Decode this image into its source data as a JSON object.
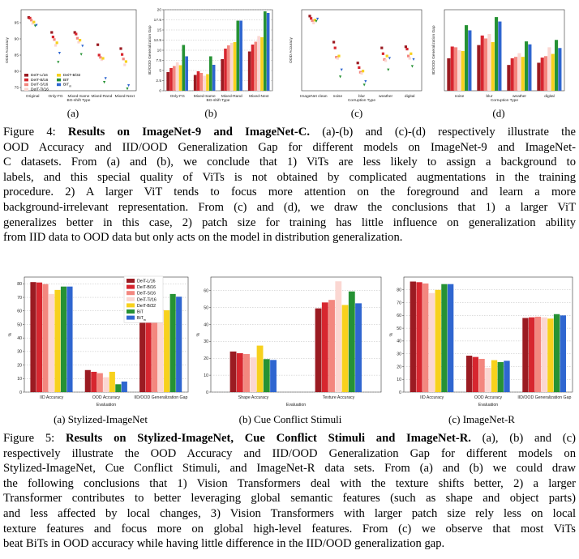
{
  "figure4": {
    "charts": [
      {
        "type": "scatter",
        "label": "(a)",
        "ylabel": "OOD Accuracy",
        "xlabel": "BG-shift Type",
        "categories": [
          "Original",
          "Only-FG",
          "Mixed-Same",
          "Mixed-Rand",
          "Mixed-Next"
        ],
        "yticks": [
          75,
          80,
          85,
          90,
          95
        ],
        "ylim": [
          74,
          99
        ],
        "series": [
          {
            "name": "DeiT-L/16",
            "values": [
              96.6,
              92.0,
              92.0,
              88.2,
              87.0
            ]
          },
          {
            "name": "DeiT-B/16",
            "values": [
              96.4,
              90.6,
              91.5,
              85.0,
              85.2
            ]
          },
          {
            "name": "DeiT-S/16",
            "values": [
              95.8,
              89.8,
              90.2,
              84.3,
              83.8
            ]
          },
          {
            "name": "DeiT-Ti/16",
            "values": [
              94.8,
              88.0,
              89.0,
              83.6,
              82.0
            ]
          },
          {
            "name": "DeiT-B/32",
            "values": [
              95.2,
              88.8,
              89.6,
              84.0,
              83.0
            ]
          },
          {
            "name": "BiT",
            "values": [
              94.0,
              82.8,
              85.2,
              76.6,
              74.6
            ]
          },
          {
            "name": "BiT_m",
            "values": [
              94.2,
              85.6,
              87.8,
              77.8,
              75.6
            ]
          }
        ],
        "legend": [
          "DeiT-L/16",
          "DeiT-B/16",
          "DeiT-S/16",
          "DeiT-Ti/16",
          "DeiT-B/32",
          "BiT",
          "BiT_m"
        ]
      },
      {
        "type": "bar",
        "label": "(b)",
        "ylabel": "IID/OOD Generalization Gap",
        "xlabel": "BG-shift Type",
        "categories": [
          "Only-FG",
          "Mixed-Same",
          "Mixed-Rand",
          "Mixed-Next"
        ],
        "yticks": [
          0.0,
          2.5,
          5.0,
          7.5,
          10.0,
          12.5,
          15.0,
          17.5,
          20.0
        ],
        "ylim": [
          0,
          20
        ],
        "series": [
          {
            "name": "DeiT-L/16",
            "values": [
              4.6,
              3.9,
              7.8,
              9.7
            ]
          },
          {
            "name": "DeiT-B/16",
            "values": [
              5.6,
              4.8,
              10.4,
              11.4
            ]
          },
          {
            "name": "DeiT-S/16",
            "values": [
              6.1,
              4.4,
              11.2,
              12.1
            ]
          },
          {
            "name": "DeiT-Ti/16",
            "values": [
              7.0,
              3.7,
              11.8,
              13.5
            ]
          },
          {
            "name": "DeiT-B/32",
            "values": [
              6.3,
              4.1,
              12.0,
              13.2
            ]
          },
          {
            "name": "BiT",
            "values": [
              11.3,
              8.5,
              17.3,
              19.6
            ]
          },
          {
            "name": "BiT_m",
            "values": [
              8.5,
              6.4,
              17.3,
              19.2
            ]
          }
        ]
      },
      {
        "type": "scatter",
        "label": "(c)",
        "ylabel": "OOD Accuracy",
        "xlabel": "Corruption Type",
        "categories": [
          "ImageNet clean",
          "noise",
          "blur",
          "weather",
          "digital"
        ],
        "ylim": [
          20,
          90
        ],
        "series": [
          {
            "name": "DeiT-L/16",
            "values": [
              84.5,
              62.0,
              44.0,
              57.0,
              58.0
            ]
          },
          {
            "name": "DeiT-B/16",
            "values": [
              82.5,
              57.0,
              40.0,
              52.0,
              56.0
            ]
          },
          {
            "name": "DeiT-S/16",
            "values": [
              80.5,
              49.0,
              36.0,
              47.0,
              50.0
            ]
          },
          {
            "name": "DeiT-Ti/16",
            "values": [
              78.5,
              48.0,
              35.0,
              46.0,
              48.0
            ]
          },
          {
            "name": "DeiT-B/32",
            "values": [
              81.0,
              50.0,
              37.0,
              50.0,
              52.0
            ]
          },
          {
            "name": "BiT",
            "values": [
              80.0,
              32.0,
              25.0,
              38.0,
              41.0
            ]
          },
          {
            "name": "BiT_m",
            "values": [
              82.0,
              38.0,
              28.0,
              48.0,
              47.0
            ]
          }
        ]
      },
      {
        "type": "bar",
        "label": "(d)",
        "ylabel": "IID/OOD Generalization Gap",
        "xlabel": "Corruption Type",
        "categories": [
          "noise",
          "blur",
          "weather",
          "digital"
        ],
        "ylim": [
          0,
          55
        ],
        "series": [
          {
            "name": "DeiT-L/16",
            "values": [
              22.0,
              31.0,
              17.5,
              19.0
            ]
          },
          {
            "name": "DeiT-B/16",
            "values": [
              30.0,
              37.5,
              22.0,
              22.5
            ]
          },
          {
            "name": "DeiT-S/16",
            "values": [
              29.5,
              35.5,
              23.0,
              23.5
            ]
          },
          {
            "name": "DeiT-Ti/16",
            "values": [
              27.5,
              38.5,
              25.5,
              29.5
            ]
          },
          {
            "name": "DeiT-B/32",
            "values": [
              27.0,
              33.0,
              23.0,
              25.0
            ]
          },
          {
            "name": "BiT",
            "values": [
              44.5,
              50.0,
              33.5,
              34.5
            ]
          },
          {
            "name": "BiT_m",
            "values": [
              41.0,
              47.0,
              31.5,
              29.0
            ]
          }
        ]
      }
    ],
    "caption": {
      "fig_label": "Figure 4:",
      "title": "Results on ImageNet-9 and ImageNet-C.",
      "body": [
        "(a)-(b) and (c)-(d) respectively illustrate the",
        "OOD Accuracy and IID/OOD Generalization Gap for different models on ImageNet-9 and ImageNet-",
        "C datasets.  From (a) and (b), we conclude that 1) ViTs are less likely to assign a background to",
        "labels, and this special quality of ViTs is not obtained by complicated augmentations in the training",
        "procedure.  2) A larger ViT tends to focus more attention on the foreground and learn a more",
        "background-irrelevant representation.  From (c) and (d), we draw the conclusions that 1) a larger ViT",
        "generalizes better in this case, 2) patch size for training has little influence on generalization ability",
        "from IID data to OOD data but only acts on the model in distribution generalization."
      ]
    }
  },
  "figure5": {
    "charts": [
      {
        "type": "bar",
        "sublabel": "(a) Stylized-ImageNet",
        "ylabel": "%",
        "xlabel": "Evaluation",
        "categories": [
          "IID Accuracy",
          "OOD Accuracy",
          "IID/OOD Generalization Gap"
        ],
        "yticks": [
          0,
          10,
          20,
          30,
          40,
          50,
          60,
          70,
          80
        ],
        "ylim": [
          0,
          85
        ],
        "series": [
          {
            "name": "DeiT-L/16",
            "values": [
              81.3,
              16.3,
              65.0
            ]
          },
          {
            "name": "DeiT-B/16",
            "values": [
              81.0,
              15.0,
              65.5
            ]
          },
          {
            "name": "DeiT-S/16",
            "values": [
              79.8,
              14.0,
              65.5
            ]
          },
          {
            "name": "DeiT-Ti/16",
            "values": [
              72.5,
              11.0,
              61.0
            ]
          },
          {
            "name": "DeiT-B/32",
            "values": [
              75.5,
              15.0,
              60.5
            ]
          },
          {
            "name": "BiT",
            "values": [
              78.0,
              5.8,
              72.5
            ]
          },
          {
            "name": "BiT_m",
            "values": [
              78.0,
              7.8,
              70.5
            ]
          }
        ],
        "legend": [
          "DeiT-L/16",
          "DeiT-B/16",
          "DeiT-S/16",
          "DeiT-Ti/16",
          "DeiT-B/32",
          "BiT",
          "BiT_m"
        ]
      },
      {
        "type": "bar",
        "sublabel": "(b) Cue Conflict Stimuli",
        "ylabel": "%",
        "xlabel": "Evaluation",
        "categories": [
          "Shape Accuracy",
          "Texture Accuracy"
        ],
        "yticks": [
          0,
          10,
          20,
          30,
          40,
          50,
          60
        ],
        "ylim": [
          0,
          68
        ],
        "series": [
          {
            "name": "DeiT-L/16",
            "values": [
              24.0,
              49.5
            ]
          },
          {
            "name": "DeiT-B/16",
            "values": [
              23.0,
              53.0
            ]
          },
          {
            "name": "DeiT-S/16",
            "values": [
              22.5,
              54.5
            ]
          },
          {
            "name": "DeiT-Ti/16",
            "values": [
              20.5,
              65.5
            ]
          },
          {
            "name": "DeiT-B/32",
            "values": [
              27.5,
              51.5
            ]
          },
          {
            "name": "BiT",
            "values": [
              19.5,
              59.5
            ]
          },
          {
            "name": "BiT_m",
            "values": [
              19.0,
              52.5
            ]
          }
        ]
      },
      {
        "type": "bar",
        "sublabel": "(c) ImageNet-R",
        "ylabel": "%",
        "xlabel": "Evaluation",
        "categories": [
          "IID Accuracy",
          "OOD Accuracy",
          "IID/OOD Generalization Gap"
        ],
        "yticks": [
          0,
          10,
          20,
          30,
          40,
          50,
          60,
          70,
          80
        ],
        "ylim": [
          0,
          90
        ],
        "series": [
          {
            "name": "DeiT-L/16",
            "values": [
              86.5,
              28.5,
              58.0
            ]
          },
          {
            "name": "DeiT-B/16",
            "values": [
              86.0,
              27.5,
              58.5
            ]
          },
          {
            "name": "DeiT-S/16",
            "values": [
              85.0,
              26.0,
              59.0
            ]
          },
          {
            "name": "DeiT-Ti/16",
            "values": [
              77.5,
              19.0,
              58.5
            ]
          },
          {
            "name": "DeiT-B/32",
            "values": [
              80.0,
              25.0,
              57.5
            ]
          },
          {
            "name": "BiT",
            "values": [
              84.5,
              23.5,
              61.0
            ]
          },
          {
            "name": "BiT_m",
            "values": [
              84.5,
              24.5,
              60.0
            ]
          }
        ]
      }
    ],
    "caption": {
      "fig_label": "Figure 5:",
      "title": "Results on Stylized-ImageNet, Cue Conflict Stimuli and ImageNet-R.",
      "body": [
        "(a), (b) and (c)",
        "respectively illustrate the OOD Accuracy and IID/OOD Generalization Gap for different models on",
        "Stylized-ImageNet, Cue Conflict Stimuli, and ImageNet-R data sets. From (a) and (b) we could draw",
        "the following conclusions that 1) Vision Transformers deal with the texture shifts better, 2) a larger",
        "Transformer contributes to better leveraging global semantic features (such as shape and object parts)",
        "and less affected by local changes, 3) Vision Transformers with larger patch size rely less on local",
        "texture features and focus more on global high-level features. From (c) we observe that most ViTs",
        "beat BiTs in OOD accuracy while having little difference in the IID/OOD generalization gap."
      ]
    }
  },
  "colors": {
    "DeiT-L/16": "#9b1b22",
    "DeiT-B/16": "#d7262f",
    "DeiT-S/16": "#f3877f",
    "DeiT-Ti/16": "#fbd7d2",
    "DeiT-B/32": "#f7d11d",
    "BiT": "#269234",
    "BiT_m": "#2f66d0"
  }
}
